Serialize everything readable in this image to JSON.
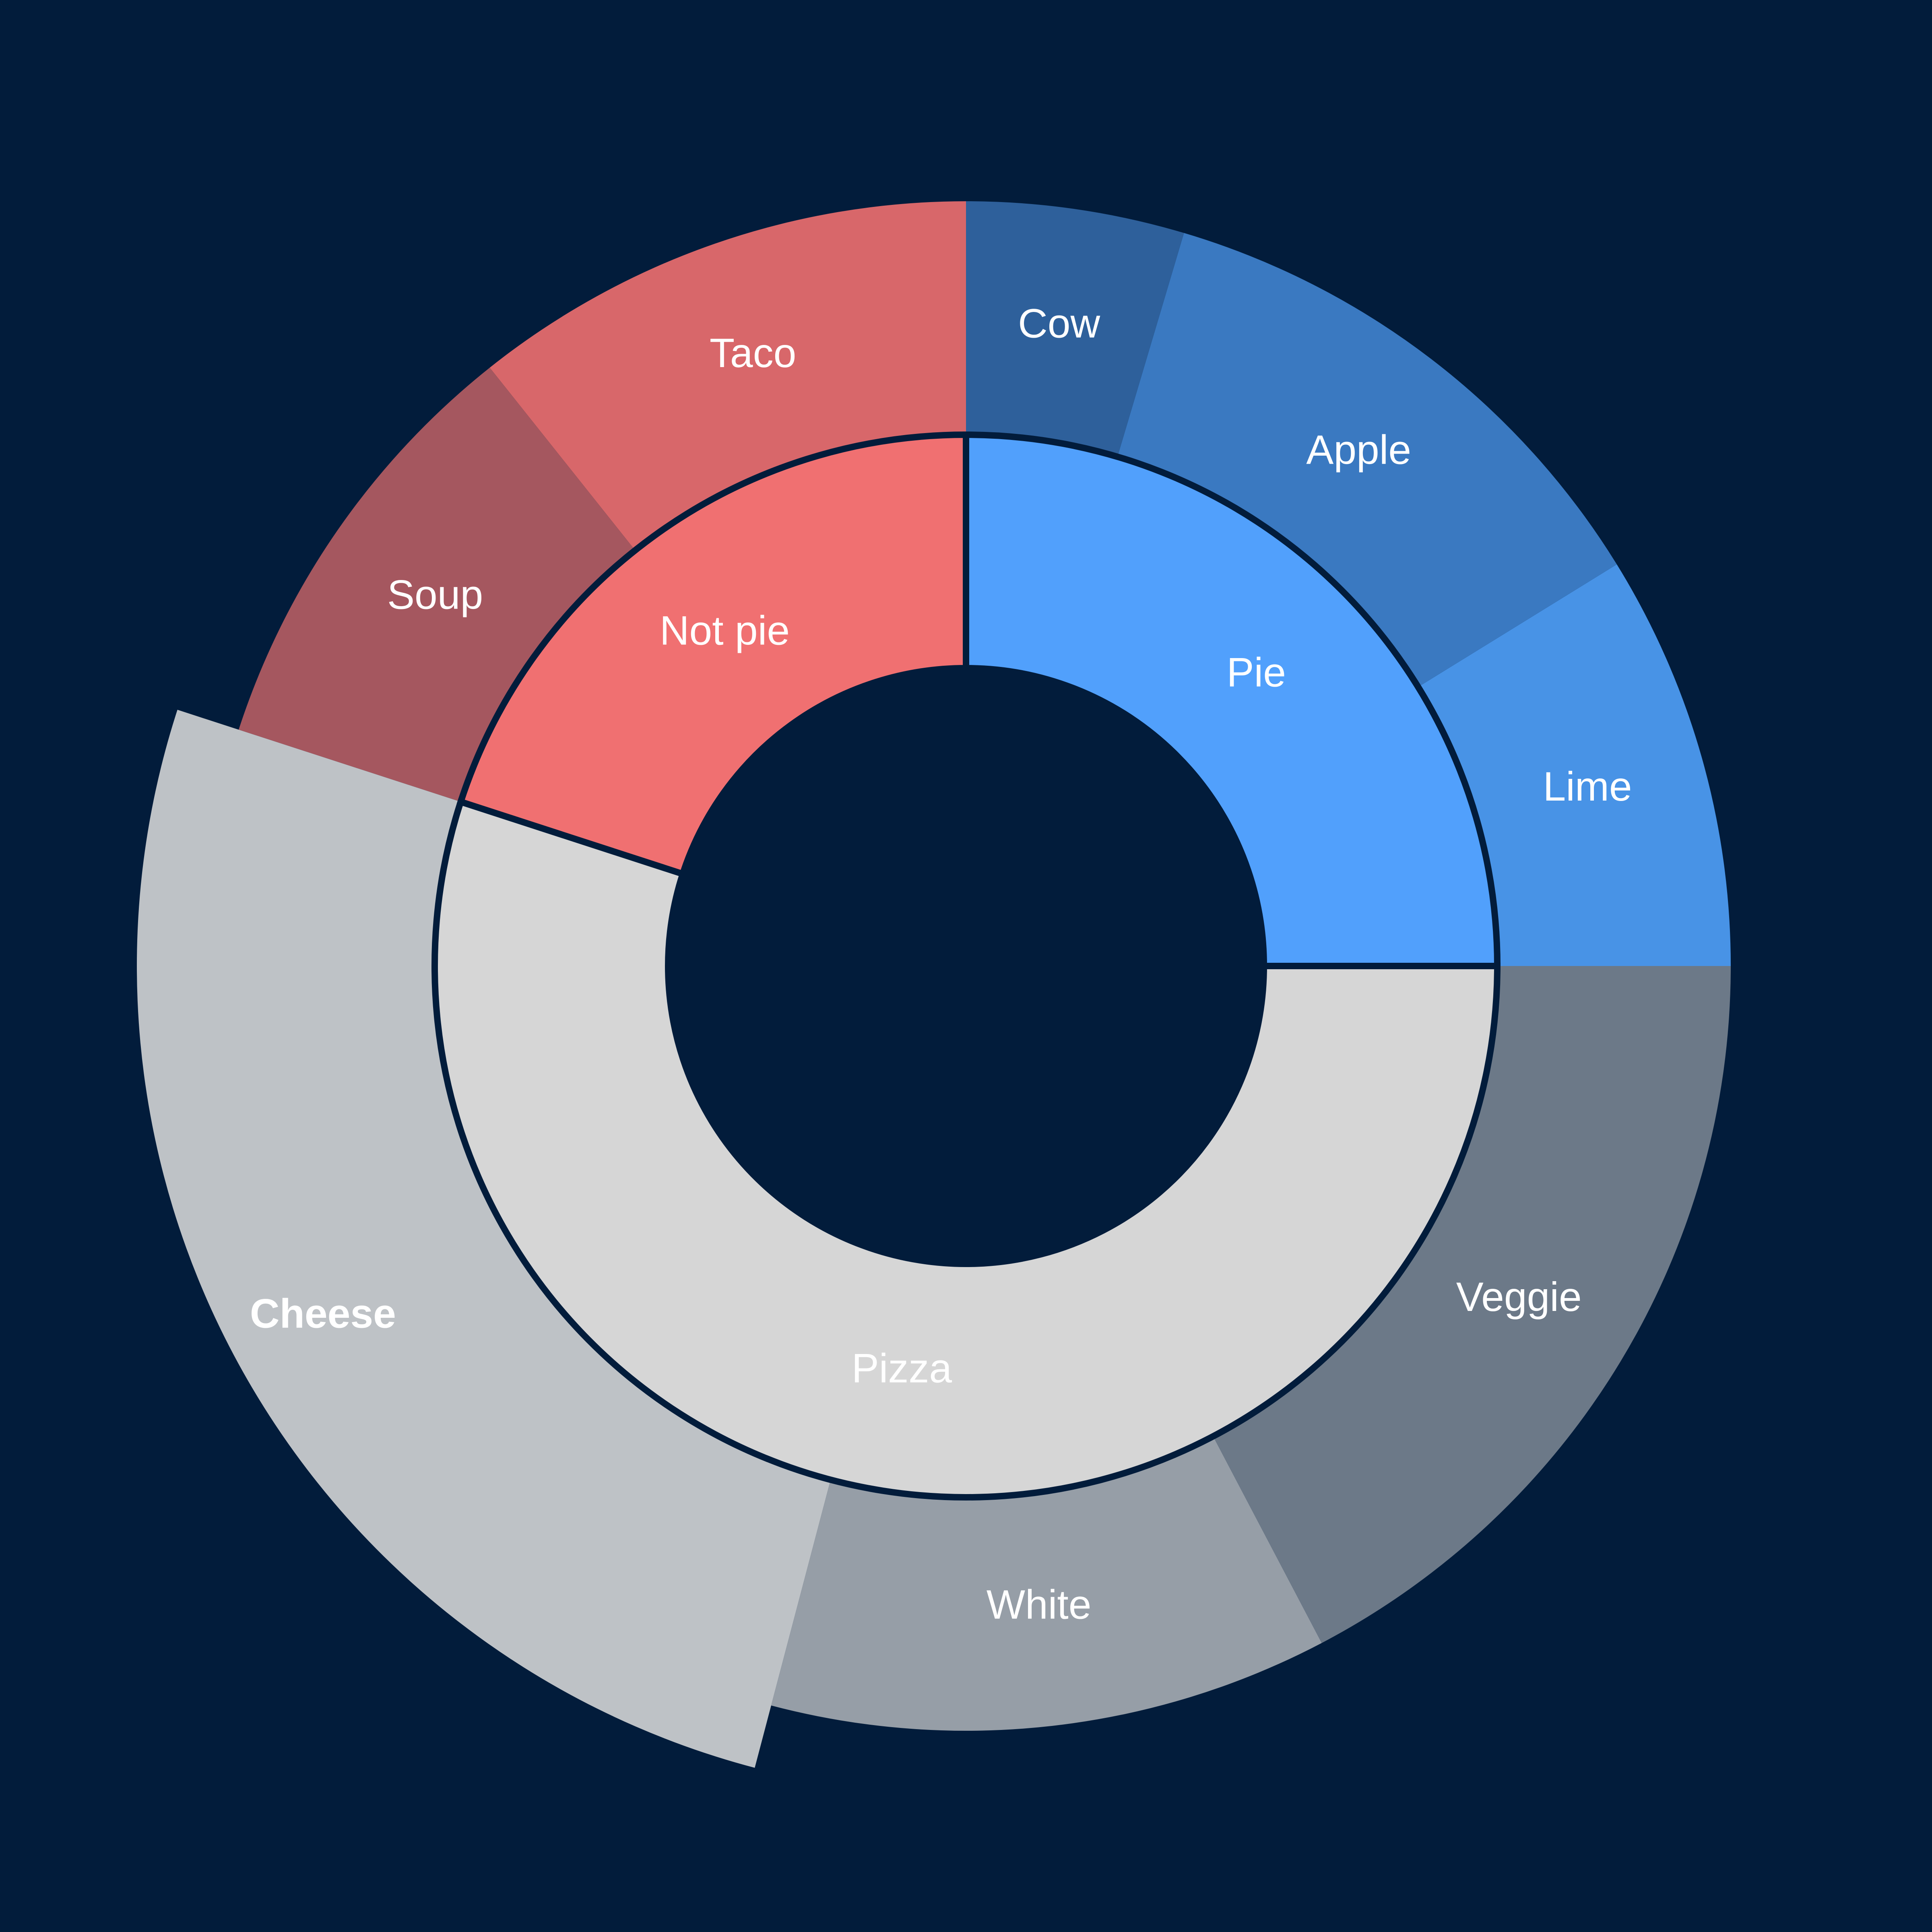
{
  "chart_data": {
    "type": "sunburst",
    "background": "#021c3b",
    "groups": [
      {
        "name": "Pie",
        "value": 25,
        "color": "#51a0fc",
        "children": [
          {
            "name": "Lime",
            "value": 8.8,
            "color": "#4893e6"
          },
          {
            "name": "Apple",
            "value": 11.6,
            "color": "#3a79c1"
          },
          {
            "name": "Cow",
            "value": 4.6,
            "color": "#2e609b"
          }
        ]
      },
      {
        "name": "Not pie",
        "value": 20,
        "color": "#f07071",
        "children": [
          {
            "name": "Taco",
            "value": 10.7,
            "color": "#d8676a"
          },
          {
            "name": "Soup",
            "value": 9.3,
            "color": "#a5575f"
          }
        ]
      },
      {
        "name": "Pizza",
        "value": 55,
        "color": "#d6d6d6",
        "children": [
          {
            "name": "Cheese",
            "value": 25.9,
            "color": "#bec2c6",
            "highlighted": true
          },
          {
            "name": "White",
            "value": 11.8,
            "color": "#969ea7"
          },
          {
            "name": "Veggie",
            "value": 17.3,
            "color": "#6c7988"
          }
        ]
      }
    ]
  }
}
